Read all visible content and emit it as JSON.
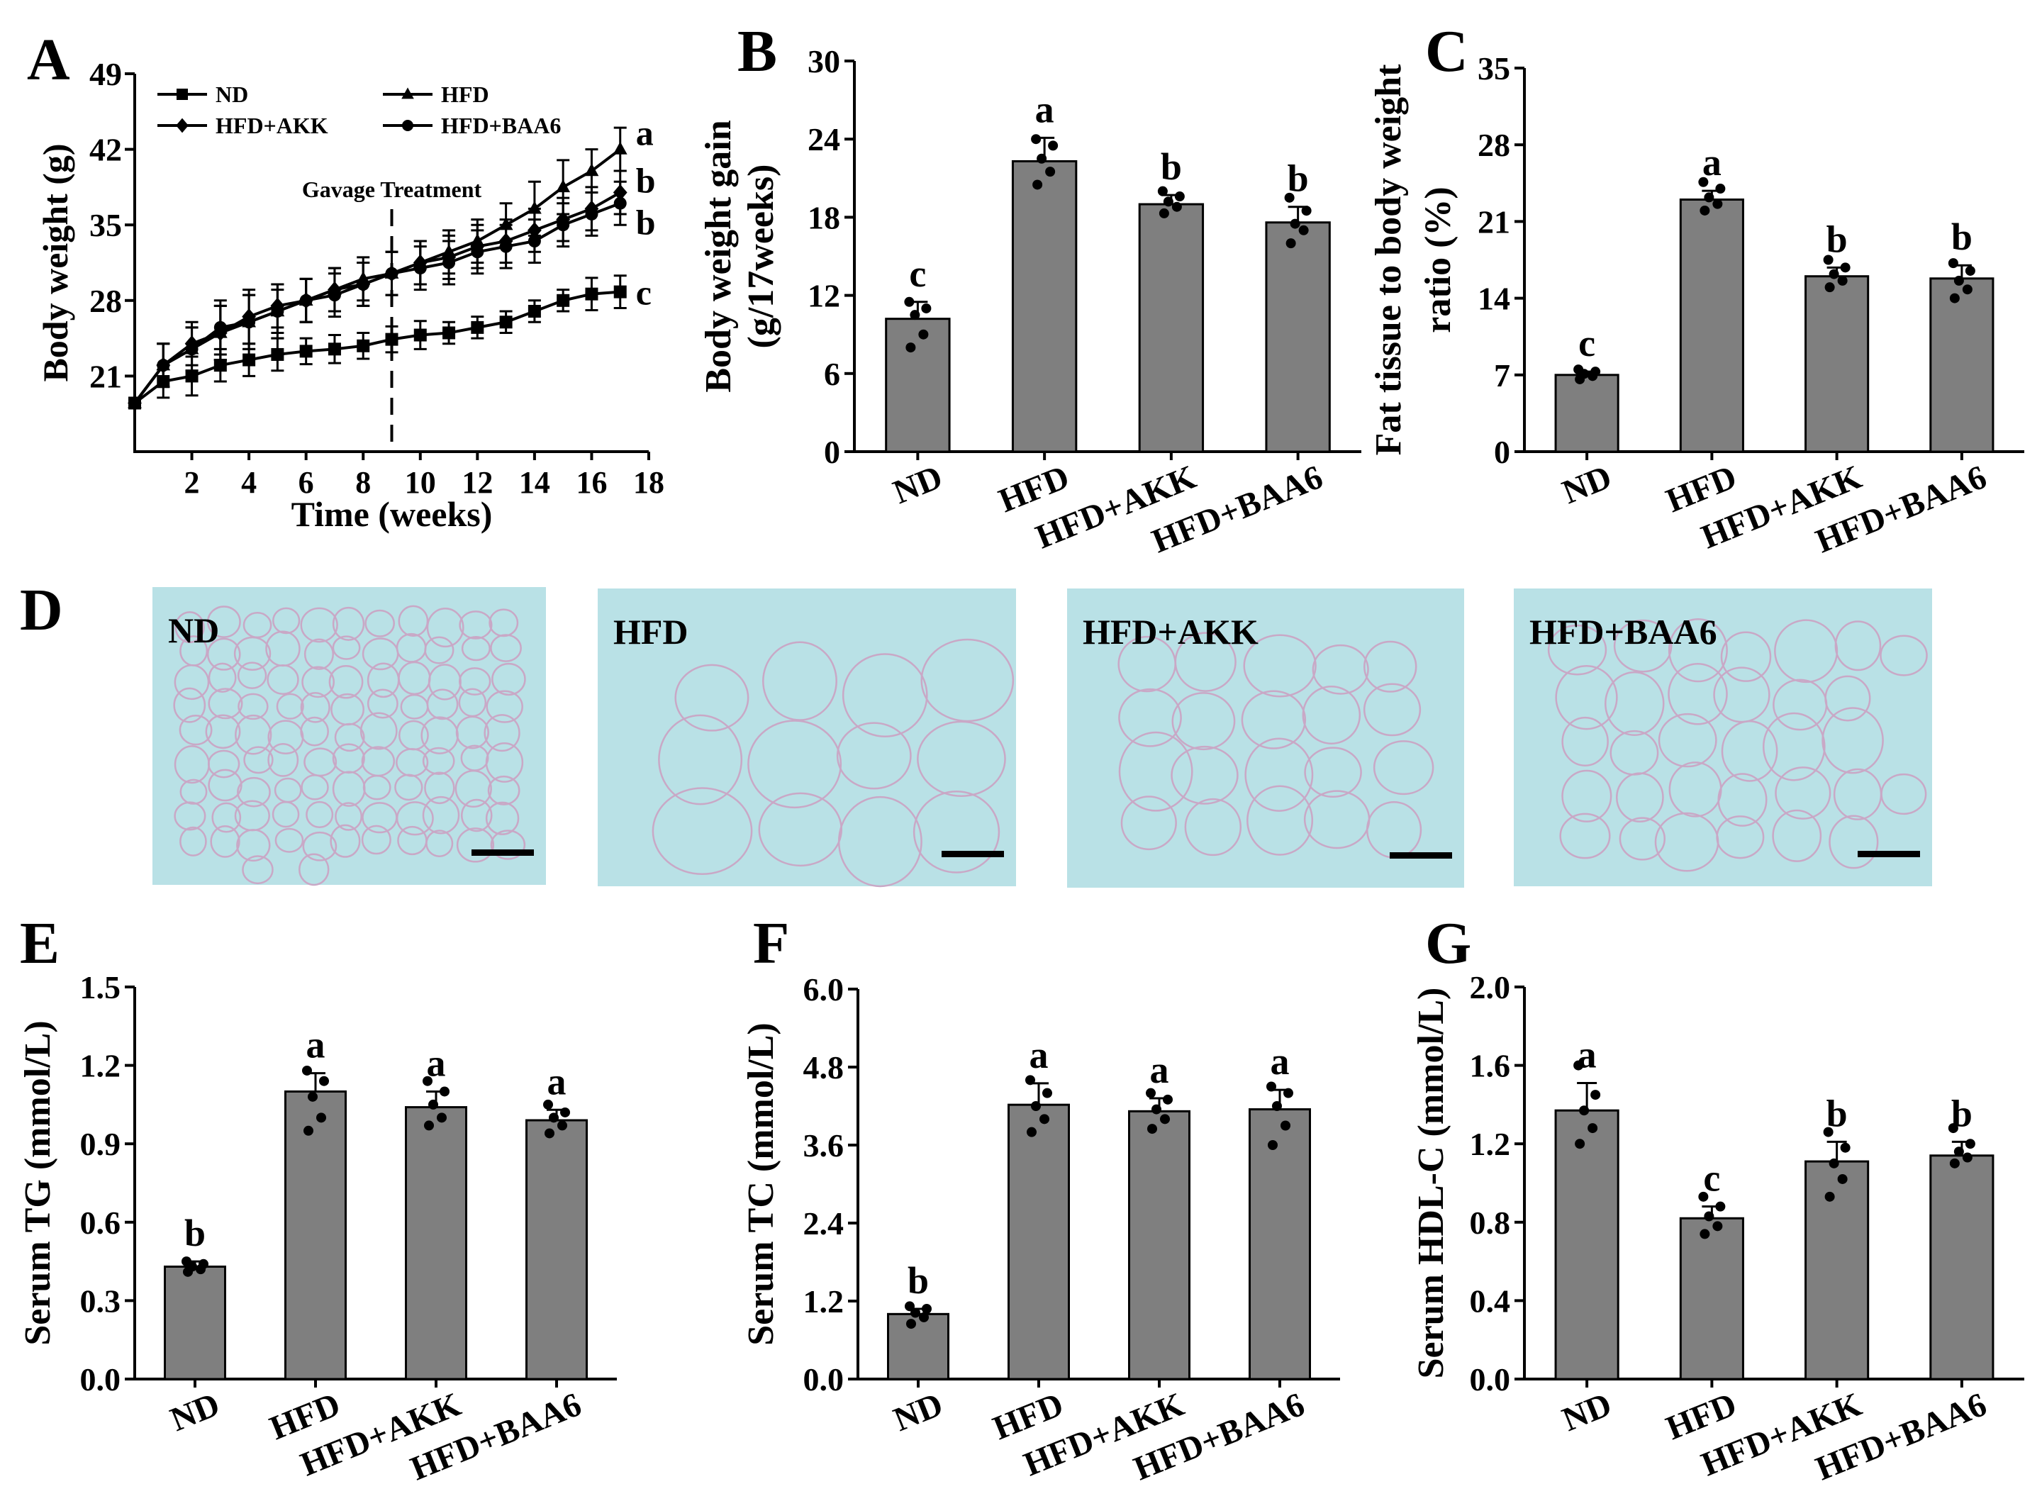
{
  "colors": {
    "bar": "#7f7f7f",
    "ink": "#000000",
    "tissue": "#b9e1e6",
    "cell_border": "#c9a8c6"
  },
  "chart_data": [
    {
      "panel": "A",
      "type": "line",
      "title": "",
      "xlabel": "Time (weeks)",
      "ylabel": "Body weight (g)",
      "xlim": [
        0,
        18
      ],
      "ylim": [
        14,
        49
      ],
      "xticks": [
        "2",
        "4",
        "6",
        "8",
        "10",
        "12",
        "14",
        "16",
        "18"
      ],
      "yticks": [
        "21",
        "28",
        "35",
        "42",
        "49"
      ],
      "annotation": "Gavage Treatment",
      "annotation_x": 9,
      "legend": [
        "ND",
        "HFD",
        "HFD+AKK",
        "HFD+BAA6"
      ],
      "x": [
        0,
        1,
        2,
        3,
        4,
        5,
        6,
        7,
        8,
        9,
        10,
        11,
        12,
        13,
        14,
        15,
        16,
        17
      ],
      "series": [
        {
          "name": "ND",
          "marker": "square",
          "letter": "c",
          "values": [
            18.5,
            20.5,
            21,
            22,
            22.5,
            23,
            23.3,
            23.5,
            23.8,
            24.4,
            24.8,
            25,
            25.5,
            26,
            27,
            28,
            28.6,
            28.8
          ],
          "errors": [
            1.5,
            1.5,
            1.8,
            1.5,
            1.5,
            1.5,
            1.2,
            1.3,
            1.2,
            1.2,
            1.3,
            1.0,
            1.0,
            1.0,
            1.0,
            1.0,
            1.5,
            1.5
          ]
        },
        {
          "name": "HFD",
          "marker": "triangle",
          "letter": "a",
          "values": [
            18.5,
            22,
            23.5,
            25,
            26,
            27,
            28,
            29,
            30,
            30.5,
            31.5,
            32.5,
            33.5,
            35,
            36.5,
            38.5,
            40,
            42
          ],
          "errors": [
            1.5,
            2,
            2,
            2.5,
            2.5,
            2.5,
            2,
            2,
            2,
            2,
            2,
            2,
            2,
            2,
            2.5,
            2.5,
            2,
            2
          ]
        },
        {
          "name": "HFD+AKK",
          "marker": "diamond",
          "letter": "b",
          "values": [
            18.5,
            22,
            24,
            25,
            26.5,
            27.5,
            28,
            29,
            29.5,
            30.5,
            31.5,
            32,
            33,
            33.5,
            34.5,
            35.5,
            36.5,
            38
          ],
          "errors": [
            1.5,
            2,
            2,
            2.5,
            2.5,
            2,
            2,
            2,
            2,
            2,
            2,
            2,
            2,
            2,
            2,
            2,
            2,
            2
          ]
        },
        {
          "name": "HFD+BAA6",
          "marker": "circle",
          "letter": "b",
          "values": [
            18.5,
            22,
            23.5,
            25.5,
            26,
            27,
            28,
            28.5,
            29.5,
            30.5,
            31,
            31.5,
            32.5,
            33,
            33.5,
            35,
            36,
            37
          ],
          "errors": [
            1.5,
            2,
            2,
            2.5,
            2.5,
            2,
            2,
            2,
            2,
            2,
            2,
            2,
            2,
            2,
            2,
            2,
            2,
            2
          ]
        }
      ]
    },
    {
      "panel": "B",
      "type": "bar",
      "title": "",
      "xlabel": "",
      "ylabel": "Body weight gain",
      "ylabel2": "(g/17weeks)",
      "ylim": [
        0,
        30
      ],
      "yticks": [
        "0",
        "6",
        "12",
        "18",
        "24",
        "30"
      ],
      "categories": [
        "ND",
        "HFD",
        "HFD+AKK",
        "HFD+BAA6"
      ],
      "values": [
        10.2,
        22.3,
        19.0,
        17.6
      ],
      "errors": [
        1.3,
        1.8,
        0.7,
        1.2
      ],
      "letters": [
        "c",
        "a",
        "b",
        "b"
      ],
      "points": [
        [
          8,
          9,
          10.5,
          11,
          11.5
        ],
        [
          20.5,
          21.5,
          22.5,
          23.5,
          24
        ],
        [
          18.3,
          18.8,
          19.2,
          19.6,
          20
        ],
        [
          16,
          17,
          17.5,
          18.5,
          19.5
        ]
      ]
    },
    {
      "panel": "C",
      "type": "bar",
      "title": "",
      "xlabel": "",
      "ylabel": "Fat tissue to body weight",
      "ylabel2": "ratio (%)",
      "ylim": [
        0,
        35
      ],
      "yticks": [
        "0",
        "7",
        "14",
        "21",
        "28",
        "35"
      ],
      "categories": [
        "ND",
        "HFD",
        "HFD+AKK",
        "HFD+BAA6"
      ],
      "values": [
        7.0,
        23.0,
        16.0,
        15.8
      ],
      "errors": [
        0.3,
        0.8,
        0.8,
        1.2
      ],
      "letters": [
        "c",
        "a",
        "b",
        "b"
      ],
      "points": [
        [
          6.6,
          6.9,
          7.1,
          7.3,
          7.5
        ],
        [
          22,
          22.6,
          23.2,
          24,
          24.6
        ],
        [
          15,
          15.6,
          16.2,
          16.8,
          17.5
        ],
        [
          14,
          14.8,
          15.6,
          16.5,
          17.2
        ]
      ]
    },
    {
      "panel": "E",
      "type": "bar",
      "title": "",
      "xlabel": "",
      "ylabel": "Serum TG (mmol/L)",
      "ylabel2": "",
      "ylim": [
        0,
        1.5
      ],
      "yticks": [
        "0.0",
        "0.3",
        "0.6",
        "0.9",
        "1.2",
        "1.5"
      ],
      "categories": [
        "ND",
        "HFD",
        "HFD+AKK",
        "HFD+BAA6"
      ],
      "values": [
        0.43,
        1.1,
        1.04,
        0.99
      ],
      "errors": [
        0.02,
        0.07,
        0.06,
        0.04
      ],
      "letters": [
        "b",
        "a",
        "a",
        "a"
      ],
      "points": [
        [
          0.41,
          0.42,
          0.43,
          0.44,
          0.45
        ],
        [
          0.95,
          1.0,
          1.08,
          1.14,
          1.18
        ],
        [
          0.97,
          1.0,
          1.05,
          1.1,
          1.14
        ],
        [
          0.94,
          0.97,
          1.0,
          1.02,
          1.05
        ]
      ]
    },
    {
      "panel": "F",
      "type": "bar",
      "title": "",
      "xlabel": "",
      "ylabel": "Serum TC (mmol/L)",
      "ylabel2": "",
      "ylim": [
        0,
        6.0
      ],
      "yticks": [
        "0.0",
        "1.2",
        "2.4",
        "3.6",
        "4.8",
        "6.0"
      ],
      "categories": [
        "ND",
        "HFD",
        "HFD+AKK",
        "HFD+BAA6"
      ],
      "values": [
        1.0,
        4.22,
        4.12,
        4.15
      ],
      "errors": [
        0.08,
        0.33,
        0.2,
        0.3
      ],
      "letters": [
        "b",
        "a",
        "a",
        "a"
      ],
      "points": [
        [
          0.85,
          0.95,
          1.02,
          1.08,
          1.12
        ],
        [
          3.8,
          4.0,
          4.2,
          4.4,
          4.6
        ],
        [
          3.85,
          4.0,
          4.15,
          4.3,
          4.4
        ],
        [
          3.6,
          3.9,
          4.2,
          4.4,
          4.5
        ]
      ]
    },
    {
      "panel": "G",
      "type": "bar",
      "title": "",
      "xlabel": "",
      "ylabel": "Serum HDL-C (mmol/L)",
      "ylabel2": "",
      "ylim": [
        0,
        2.0
      ],
      "yticks": [
        "0.0",
        "0.4",
        "0.8",
        "1.2",
        "1.6",
        "2.0"
      ],
      "categories": [
        "ND",
        "HFD",
        "HFD+AKK",
        "HFD+BAA6"
      ],
      "values": [
        1.37,
        0.82,
        1.11,
        1.14
      ],
      "errors": [
        0.14,
        0.06,
        0.1,
        0.07
      ],
      "letters": [
        "a",
        "c",
        "b",
        "b"
      ],
      "points": [
        [
          1.2,
          1.28,
          1.37,
          1.45,
          1.6
        ],
        [
          0.74,
          0.78,
          0.83,
          0.88,
          0.93
        ],
        [
          0.93,
          1.02,
          1.1,
          1.18,
          1.26
        ],
        [
          1.1,
          1.13,
          1.16,
          1.2,
          1.28
        ]
      ]
    }
  ],
  "histology": {
    "panel": "D",
    "images": [
      {
        "label": "ND"
      },
      {
        "label": "HFD"
      },
      {
        "label": "HFD+AKK"
      },
      {
        "label": "HFD+BAA6"
      }
    ]
  }
}
